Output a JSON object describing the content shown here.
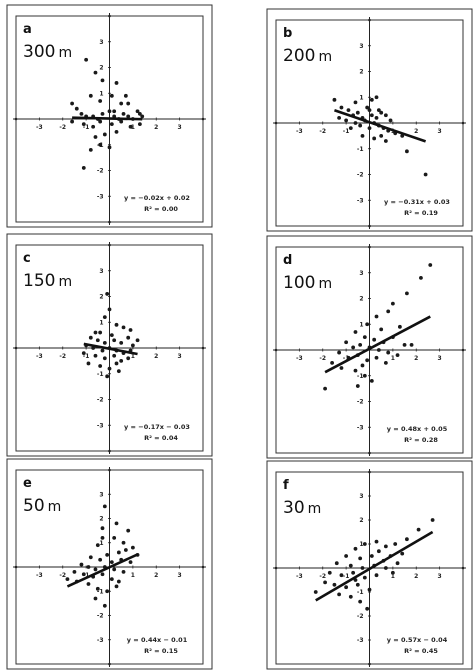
{
  "chart_data": [
    {
      "type": "scatter",
      "letter": "a",
      "distance": "300",
      "unit": "m",
      "equation": "y = −0.02x + 0.02",
      "r2_label": "R² = 0.00",
      "slope": -0.02,
      "intercept": 0.02,
      "xlim": [
        -4,
        4
      ],
      "ylim": [
        -4,
        4
      ],
      "x_ticks": [
        "-3",
        "-2",
        "-1",
        "1",
        "2",
        "3"
      ],
      "y_ticks": [
        "3",
        "2",
        "1",
        "-1",
        "-2",
        "-3"
      ],
      "points": [
        [
          -1.0,
          2.3
        ],
        [
          -0.6,
          1.8
        ],
        [
          -0.3,
          1.5
        ],
        [
          0.3,
          1.4
        ],
        [
          0.5,
          0.6
        ],
        [
          -0.8,
          0.9
        ],
        [
          -0.4,
          0.7
        ],
        [
          0.1,
          0.9
        ],
        [
          0.2,
          0.3
        ],
        [
          -1.4,
          0.4
        ],
        [
          -1.2,
          0.2
        ],
        [
          -1.0,
          0.1
        ],
        [
          -0.7,
          0.1
        ],
        [
          -0.5,
          0.0
        ],
        [
          -0.3,
          0.2
        ],
        [
          0.0,
          0.3
        ],
        [
          0.2,
          0.1
        ],
        [
          0.4,
          0.0
        ],
        [
          0.6,
          0.2
        ],
        [
          0.8,
          0.1
        ],
        [
          1.0,
          0.0
        ],
        [
          1.2,
          0.3
        ],
        [
          1.3,
          0.2
        ],
        [
          1.4,
          0.1
        ],
        [
          -1.6,
          -0.1
        ],
        [
          -1.1,
          -0.2
        ],
        [
          -0.7,
          -0.3
        ],
        [
          -0.4,
          -0.1
        ],
        [
          0.1,
          -0.2
        ],
        [
          0.5,
          -0.1
        ],
        [
          0.9,
          -0.3
        ],
        [
          1.3,
          -0.2
        ],
        [
          -0.6,
          -0.7
        ],
        [
          -0.2,
          -0.6
        ],
        [
          0.3,
          -0.5
        ],
        [
          -0.4,
          -1.0
        ],
        [
          0.0,
          -1.1
        ],
        [
          -0.8,
          -1.2
        ],
        [
          -1.1,
          -1.9
        ],
        [
          0.8,
          0.6
        ],
        [
          -1.6,
          0.6
        ],
        [
          0.7,
          0.9
        ]
      ]
    },
    {
      "type": "scatter",
      "letter": "b",
      "distance": "200",
      "unit": "m",
      "equation": "y = −0.31x + 0.03",
      "r2_label": "R² = 0.19",
      "slope": -0.31,
      "intercept": 0.03,
      "xlim": [
        -4,
        4
      ],
      "ylim": [
        -4,
        4
      ],
      "x_ticks": [
        "-3",
        "-2",
        "-1",
        "1",
        "2",
        "3"
      ],
      "y_ticks": [
        "3",
        "2",
        "1",
        "-1",
        "-2",
        "-3"
      ],
      "points": [
        [
          -1.5,
          0.9
        ],
        [
          -1.2,
          0.6
        ],
        [
          -0.9,
          0.5
        ],
        [
          -0.7,
          0.3
        ],
        [
          -0.5,
          0.4
        ],
        [
          -0.3,
          0.2
        ],
        [
          -0.1,
          0.6
        ],
        [
          0.1,
          0.3
        ],
        [
          0.3,
          0.2
        ],
        [
          0.5,
          0.4
        ],
        [
          0.7,
          0.3
        ],
        [
          0.9,
          0.1
        ],
        [
          -0.6,
          0.0
        ],
        [
          -0.4,
          -0.1
        ],
        [
          -0.2,
          0.1
        ],
        [
          0.0,
          -0.2
        ],
        [
          0.2,
          0.0
        ],
        [
          0.4,
          -0.1
        ],
        [
          0.6,
          -0.2
        ],
        [
          0.8,
          -0.3
        ],
        [
          -0.8,
          -0.2
        ],
        [
          -1.0,
          0.1
        ],
        [
          0.1,
          0.9
        ],
        [
          0.3,
          1.0
        ],
        [
          -0.3,
          -0.5
        ],
        [
          0.2,
          -0.6
        ],
        [
          0.5,
          -0.5
        ],
        [
          1.1,
          -0.4
        ],
        [
          1.4,
          -0.5
        ],
        [
          1.6,
          -1.1
        ],
        [
          2.4,
          -2.0
        ],
        [
          -1.3,
          0.2
        ],
        [
          0.0,
          0.5
        ],
        [
          -0.6,
          0.8
        ],
        [
          0.7,
          -0.7
        ],
        [
          0.4,
          0.5
        ]
      ]
    },
    {
      "type": "scatter",
      "letter": "c",
      "distance": "150",
      "unit": "m",
      "equation": "y = −0.17x − 0.03",
      "r2_label": "R² = 0.04",
      "slope": -0.17,
      "intercept": -0.03,
      "xlim": [
        -4,
        4
      ],
      "ylim": [
        -4,
        4
      ],
      "x_ticks": [
        "-3",
        "-2",
        "-1",
        "1",
        "2",
        "3"
      ],
      "y_ticks": [
        "3",
        "2",
        "1",
        "-1",
        "-2",
        "-3"
      ],
      "points": [
        [
          -0.1,
          2.1
        ],
        [
          0.0,
          1.5
        ],
        [
          -0.2,
          1.2
        ],
        [
          0.3,
          0.9
        ],
        [
          0.6,
          0.8
        ],
        [
          0.9,
          0.7
        ],
        [
          -0.4,
          0.6
        ],
        [
          0.1,
          0.5
        ],
        [
          -0.8,
          0.4
        ],
        [
          -0.5,
          0.3
        ],
        [
          -0.2,
          0.2
        ],
        [
          0.2,
          0.3
        ],
        [
          0.5,
          0.2
        ],
        [
          0.8,
          0.4
        ],
        [
          1.0,
          0.1
        ],
        [
          -1.0,
          0.1
        ],
        [
          -0.7,
          0.0
        ],
        [
          -0.3,
          -0.1
        ],
        [
          0.0,
          0.0
        ],
        [
          0.3,
          -0.1
        ],
        [
          0.6,
          -0.2
        ],
        [
          0.9,
          -0.1
        ],
        [
          -1.1,
          -0.2
        ],
        [
          -0.6,
          -0.3
        ],
        [
          -0.2,
          -0.4
        ],
        [
          0.2,
          -0.3
        ],
        [
          0.5,
          -0.5
        ],
        [
          0.8,
          -0.4
        ],
        [
          -0.9,
          -0.6
        ],
        [
          -0.4,
          -0.7
        ],
        [
          0.0,
          -0.8
        ],
        [
          0.4,
          -0.9
        ],
        [
          -0.1,
          -1.1
        ],
        [
          0.3,
          -0.6
        ],
        [
          -0.6,
          0.6
        ],
        [
          1.2,
          0.3
        ]
      ]
    },
    {
      "type": "scatter",
      "letter": "d",
      "distance": "100",
      "unit": "m",
      "equation": "y = 0.48x + 0.05",
      "r2_label": "R² = 0.28",
      "slope": 0.48,
      "intercept": 0.05,
      "xlim": [
        -4,
        4
      ],
      "ylim": [
        -4,
        4
      ],
      "x_ticks": [
        "-3",
        "-2",
        "-1",
        "1",
        "2",
        "3"
      ],
      "y_ticks": [
        "3",
        "2",
        "1",
        "-1",
        "-2",
        "-3"
      ],
      "points": [
        [
          2.6,
          3.3
        ],
        [
          2.2,
          2.8
        ],
        [
          1.6,
          2.2
        ],
        [
          1.0,
          1.8
        ],
        [
          0.8,
          1.5
        ],
        [
          0.3,
          1.3
        ],
        [
          -0.1,
          1.0
        ],
        [
          0.5,
          0.8
        ],
        [
          1.3,
          0.9
        ],
        [
          -0.6,
          0.7
        ],
        [
          -0.2,
          0.5
        ],
        [
          0.2,
          0.4
        ],
        [
          0.6,
          0.3
        ],
        [
          1.0,
          0.5
        ],
        [
          1.5,
          0.2
        ],
        [
          -1.0,
          0.3
        ],
        [
          -0.7,
          0.1
        ],
        [
          -0.4,
          0.2
        ],
        [
          0.0,
          0.1
        ],
        [
          0.4,
          0.0
        ],
        [
          0.8,
          -0.1
        ],
        [
          1.2,
          -0.2
        ],
        [
          -1.3,
          -0.1
        ],
        [
          -0.9,
          -0.3
        ],
        [
          -0.5,
          -0.2
        ],
        [
          -0.1,
          -0.4
        ],
        [
          0.3,
          -0.3
        ],
        [
          0.7,
          -0.5
        ],
        [
          -1.6,
          -0.5
        ],
        [
          -1.2,
          -0.7
        ],
        [
          -0.6,
          -0.8
        ],
        [
          -0.2,
          -1.0
        ],
        [
          0.1,
          -1.2
        ],
        [
          -0.5,
          -1.4
        ],
        [
          -1.9,
          -1.5
        ],
        [
          -0.3,
          -0.6
        ],
        [
          1.8,
          0.2
        ]
      ]
    },
    {
      "type": "scatter",
      "letter": "e",
      "distance": "50",
      "unit": "m",
      "equation": "y = 0.44x − 0.01",
      "r2_label": "R² = 0.15",
      "slope": 0.44,
      "intercept": -0.01,
      "xlim": [
        -4,
        4
      ],
      "ylim": [
        -4,
        4
      ],
      "x_ticks": [
        "-3",
        "-2",
        "-1",
        "1",
        "2",
        "3"
      ],
      "y_ticks": [
        "3",
        "2",
        "1",
        "-1",
        "-2",
        "-3"
      ],
      "points": [
        [
          -0.2,
          2.5
        ],
        [
          0.3,
          1.8
        ],
        [
          -0.3,
          1.6
        ],
        [
          0.8,
          1.5
        ],
        [
          0.2,
          1.2
        ],
        [
          0.6,
          1.0
        ],
        [
          1.0,
          0.8
        ],
        [
          -0.5,
          0.9
        ],
        [
          0.4,
          0.6
        ],
        [
          -0.1,
          0.5
        ],
        [
          1.2,
          0.5
        ],
        [
          -0.8,
          0.4
        ],
        [
          -0.4,
          0.3
        ],
        [
          0.1,
          0.2
        ],
        [
          0.5,
          0.3
        ],
        [
          0.9,
          0.2
        ],
        [
          -1.2,
          0.1
        ],
        [
          -0.9,
          0.0
        ],
        [
          -0.6,
          -0.1
        ],
        [
          -0.2,
          0.0
        ],
        [
          0.2,
          -0.1
        ],
        [
          0.6,
          -0.2
        ],
        [
          -1.5,
          -0.2
        ],
        [
          -1.1,
          -0.3
        ],
        [
          -0.7,
          -0.4
        ],
        [
          -0.3,
          -0.3
        ],
        [
          0.1,
          -0.5
        ],
        [
          0.4,
          -0.6
        ],
        [
          -1.4,
          -0.6
        ],
        [
          -0.9,
          -0.7
        ],
        [
          -0.5,
          -0.9
        ],
        [
          -0.1,
          -1.0
        ],
        [
          0.3,
          -0.8
        ],
        [
          -0.6,
          -1.3
        ],
        [
          -0.2,
          -1.6
        ],
        [
          -1.8,
          -0.5
        ],
        [
          0.7,
          0.7
        ],
        [
          -0.3,
          1.2
        ]
      ]
    },
    {
      "type": "scatter",
      "letter": "f",
      "distance": "30",
      "unit": "m",
      "equation": "y = 0.57x − 0.04",
      "r2_label": "R² = 0.45",
      "slope": 0.57,
      "intercept": -0.04,
      "xlim": [
        -4,
        4
      ],
      "ylim": [
        -4,
        4
      ],
      "x_ticks": [
        "-3",
        "-2",
        "-1",
        "1",
        "2",
        "3"
      ],
      "y_ticks": [
        "3",
        "2",
        "1",
        "-1",
        "-2",
        "-3"
      ],
      "points": [
        [
          2.7,
          2.0
        ],
        [
          2.1,
          1.6
        ],
        [
          1.6,
          1.2
        ],
        [
          1.1,
          1.0
        ],
        [
          0.7,
          0.9
        ],
        [
          0.3,
          1.1
        ],
        [
          -0.2,
          1.0
        ],
        [
          -0.6,
          0.8
        ],
        [
          0.4,
          0.7
        ],
        [
          0.9,
          0.5
        ],
        [
          1.4,
          0.6
        ],
        [
          -1.0,
          0.5
        ],
        [
          -0.4,
          0.4
        ],
        [
          0.1,
          0.5
        ],
        [
          0.6,
          0.3
        ],
        [
          1.2,
          0.2
        ],
        [
          -1.4,
          0.2
        ],
        [
          -0.8,
          0.1
        ],
        [
          -0.3,
          0.0
        ],
        [
          0.2,
          0.1
        ],
        [
          0.7,
          0.0
        ],
        [
          -1.7,
          -0.2
        ],
        [
          -1.2,
          -0.3
        ],
        [
          -0.7,
          -0.2
        ],
        [
          -0.2,
          -0.4
        ],
        [
          0.3,
          -0.3
        ],
        [
          -1.9,
          -0.6
        ],
        [
          -1.5,
          -0.7
        ],
        [
          -1.0,
          -0.8
        ],
        [
          -0.5,
          -0.7
        ],
        [
          0.0,
          -0.9
        ],
        [
          -1.3,
          -1.1
        ],
        [
          -0.8,
          -1.2
        ],
        [
          -0.4,
          -1.4
        ],
        [
          -0.1,
          -1.7
        ],
        [
          -2.3,
          -1.0
        ],
        [
          1.0,
          -0.2
        ],
        [
          -0.6,
          -0.5
        ]
      ]
    }
  ]
}
